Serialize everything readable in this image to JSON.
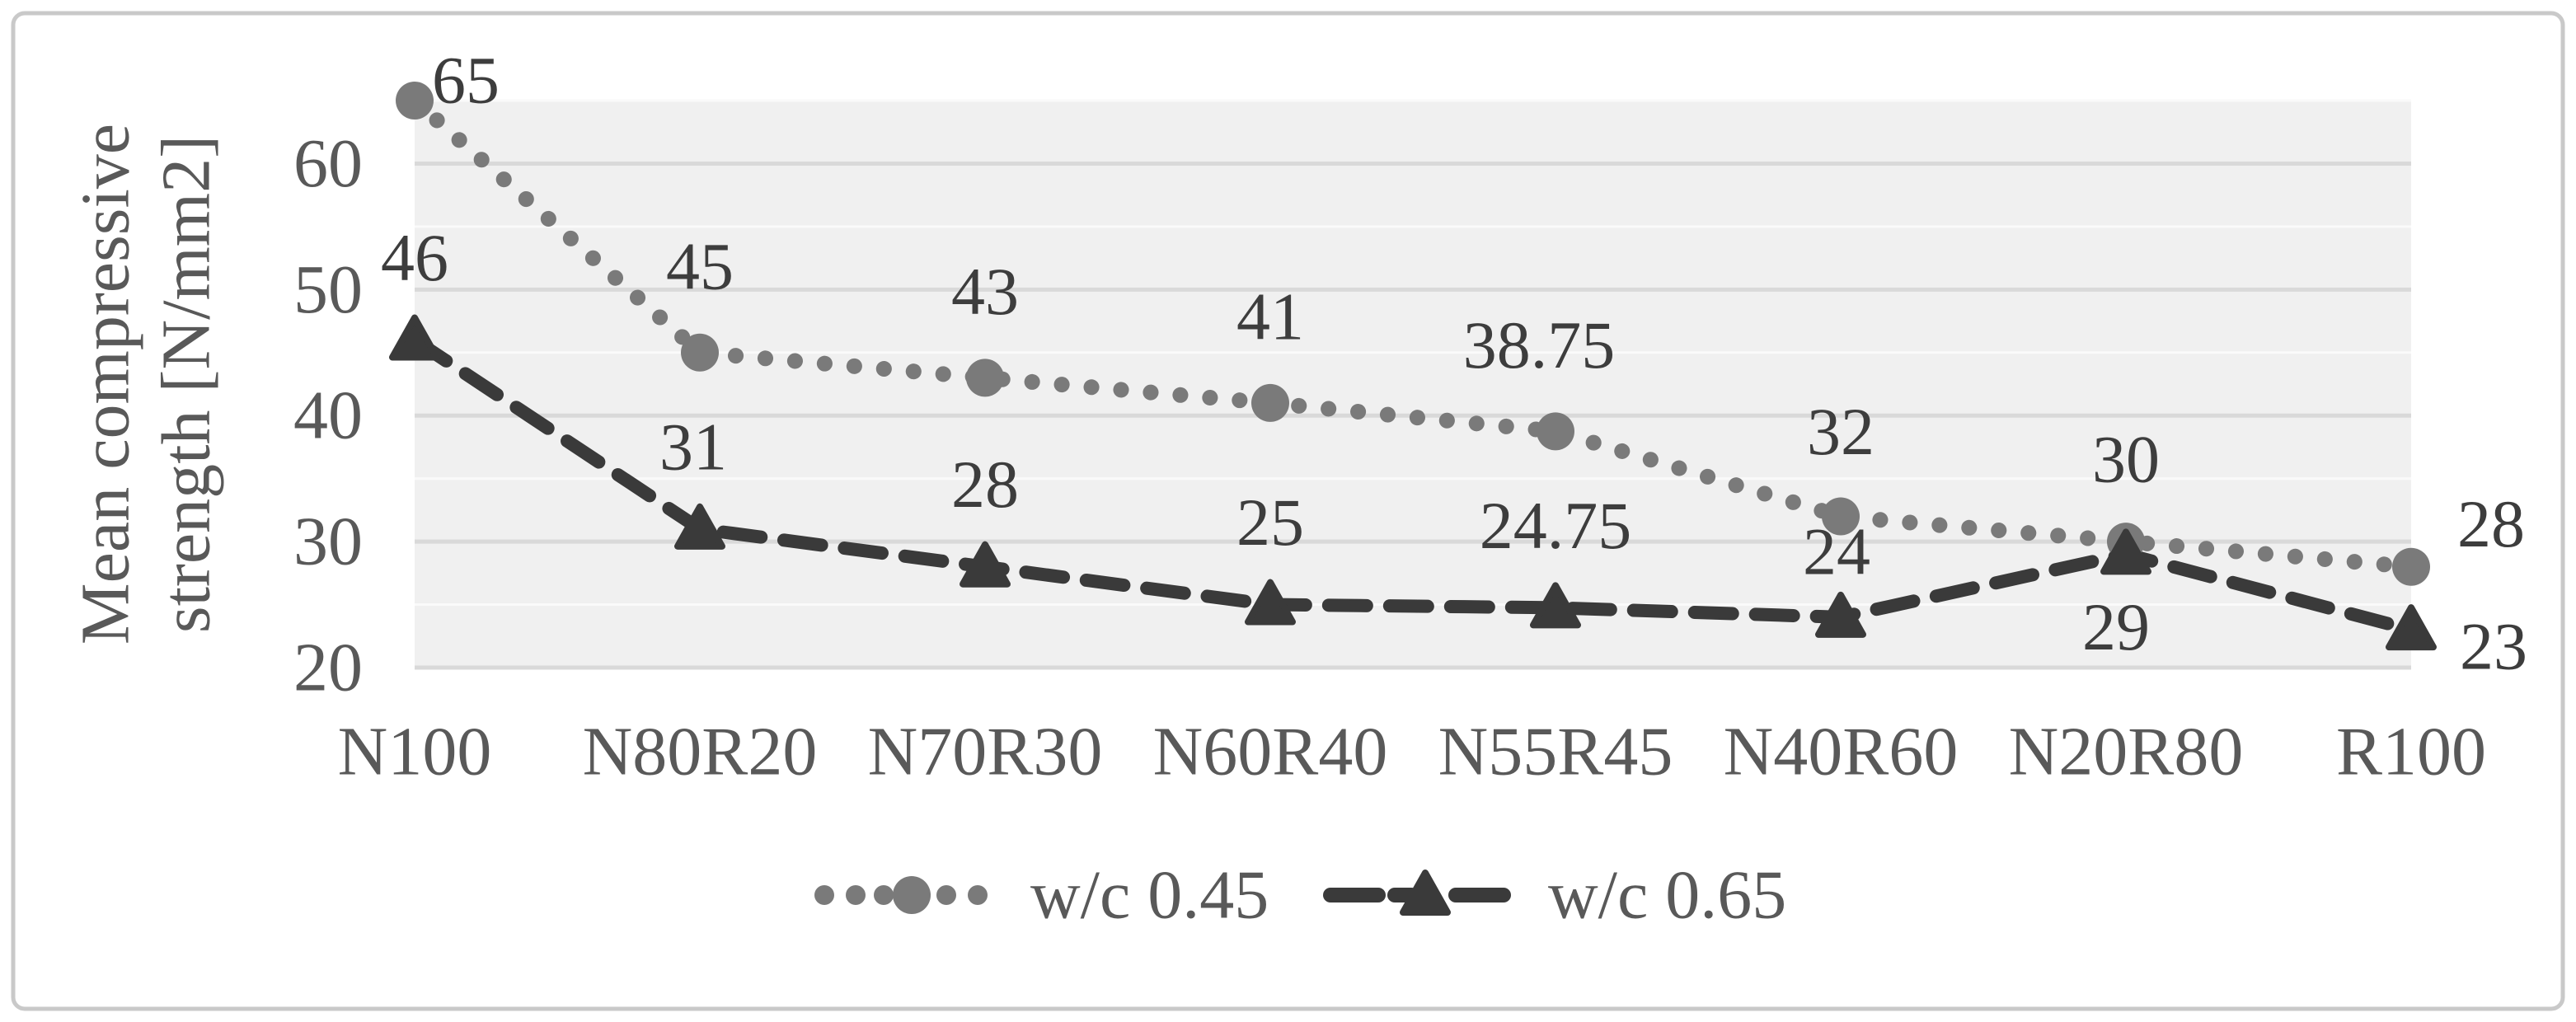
{
  "chart_data": {
    "type": "line",
    "title": "",
    "xlabel": "",
    "ylabel": "Mean compressive strength [N/mm2]",
    "ylabel_lines": [
      "Mean compressive",
      "strength [N/mm2]"
    ],
    "categories": [
      "N100",
      "N80R20",
      "N70R30",
      "N60R40",
      "N55R45",
      "N40R60",
      "N20R80",
      "R100"
    ],
    "series": [
      {
        "name": "w/c 0.45",
        "values": [
          65,
          45,
          43,
          41,
          38.75,
          32,
          30,
          28
        ],
        "data_labels": [
          "65",
          "45",
          "43",
          "41",
          "38.75",
          "32",
          "30",
          "28"
        ],
        "marker": "circle",
        "line_style": "dotted",
        "color": "#7a7a7a",
        "label_offsets": [
          [
            62,
            -25
          ],
          [
            0,
            -105
          ],
          [
            0,
            -105
          ],
          [
            0,
            -105
          ],
          [
            -20,
            -105
          ],
          [
            0,
            -103
          ],
          [
            0,
            -100
          ],
          [
            97,
            -52
          ]
        ]
      },
      {
        "name": "w/c 0.65",
        "values": [
          46,
          31,
          28,
          25,
          24.75,
          24,
          29,
          23
        ],
        "data_labels": [
          "46",
          "31",
          "28",
          "25",
          "24.75",
          "24",
          "29",
          "23"
        ],
        "marker": "triangle",
        "line_style": "dashed",
        "color": "#3a3a3a",
        "label_offsets": [
          [
            0,
            -100
          ],
          [
            -8,
            -100
          ],
          [
            0,
            -100
          ],
          [
            0,
            -100
          ],
          [
            0,
            -100
          ],
          [
            -5,
            -80
          ],
          [
            -12,
            88
          ],
          [
            100,
            20
          ]
        ]
      }
    ],
    "y_axis": {
      "min": 20,
      "max": 65,
      "major_step": 10,
      "minor_step": 5,
      "tick_labels": [
        "20",
        "30",
        "40",
        "50",
        "60"
      ],
      "tick_values": [
        20,
        30,
        40,
        50,
        60
      ]
    },
    "legend": {
      "position": "bottom-center",
      "entries": [
        "w/c 0.45",
        "w/c 0.65"
      ]
    },
    "grid": true,
    "colors": {
      "plot_background": "#f0f0f0",
      "grid_major": "#d9d9d9",
      "grid_minor": "#fafafa",
      "frame_border": "#c9c9c9",
      "axis_text": "#595959",
      "data_label_text": "#3d3d3d",
      "legend_text": "#595959"
    }
  }
}
